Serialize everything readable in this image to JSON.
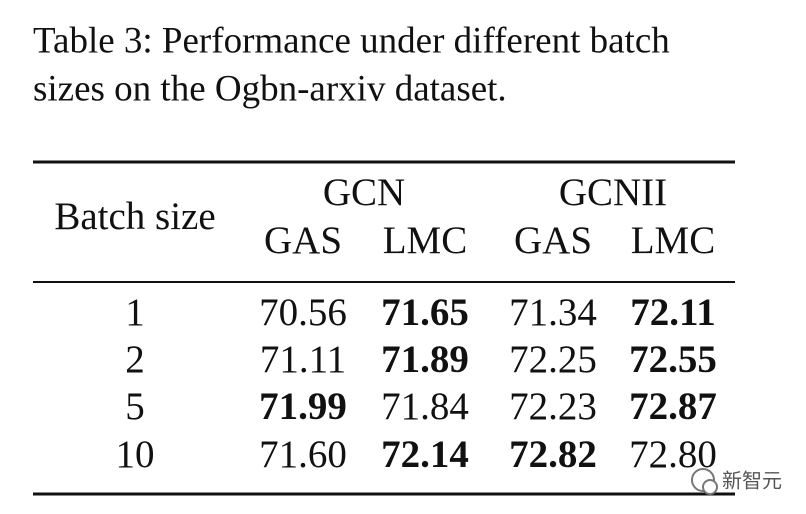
{
  "caption": {
    "lines": [
      "Table 3: Performance under different batch",
      "sizes on the Ogbn-arxiv dataset."
    ]
  },
  "table": {
    "row_header": "Batch size",
    "groups": [
      {
        "name": "GCN",
        "columns": [
          "GAS",
          "LMC"
        ]
      },
      {
        "name": "GCNII",
        "columns": [
          "GAS",
          "LMC"
        ]
      }
    ],
    "rows": [
      {
        "label": "1",
        "cells": [
          "70.56",
          "71.65",
          "71.34",
          "72.11"
        ],
        "bold": [
          false,
          true,
          false,
          true
        ]
      },
      {
        "label": "2",
        "cells": [
          "71.11",
          "71.89",
          "72.25",
          "72.55"
        ],
        "bold": [
          false,
          true,
          false,
          true
        ]
      },
      {
        "label": "5",
        "cells": [
          "71.99",
          "71.84",
          "72.23",
          "72.87"
        ],
        "bold": [
          true,
          false,
          false,
          true
        ]
      },
      {
        "label": "10",
        "cells": [
          "71.60",
          "72.14",
          "72.82",
          "72.80"
        ],
        "bold": [
          false,
          true,
          true,
          false
        ]
      }
    ]
  },
  "watermark": {
    "text": "新智元"
  }
}
